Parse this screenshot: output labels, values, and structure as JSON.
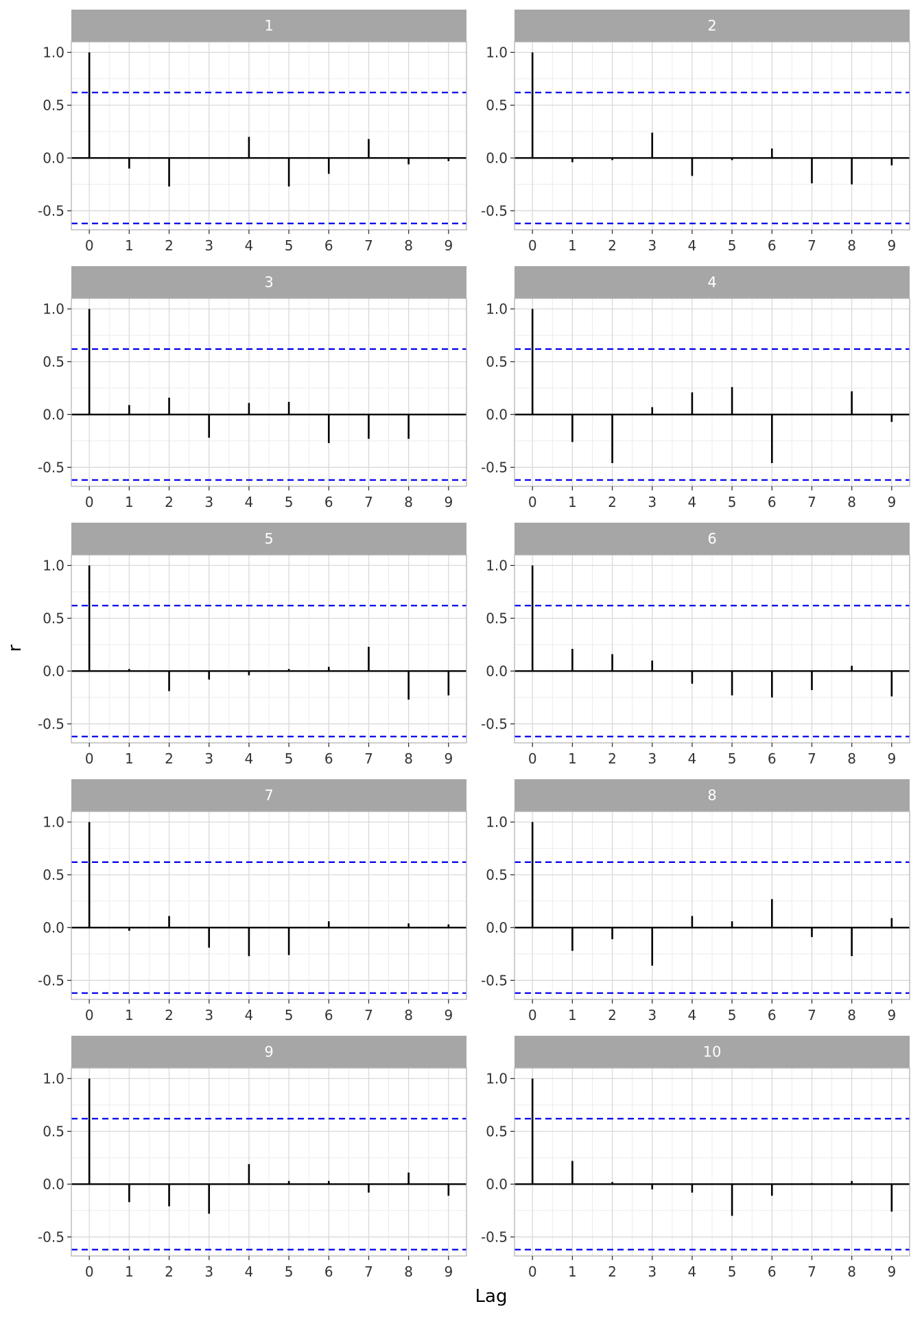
{
  "chart_data": {
    "type": "bar",
    "xlabel": "Lag",
    "ylabel": "r",
    "xlim": [
      -0.45,
      9.45
    ],
    "ylim": [
      -0.68,
      1.1
    ],
    "x_ticks": [
      0,
      1,
      2,
      3,
      4,
      5,
      6,
      7,
      8,
      9
    ],
    "y_ticks": [
      1.0,
      0.5,
      0.0,
      -0.5
    ],
    "y_tick_labels": [
      "1.0",
      "0.5",
      "0.0",
      "-0.5"
    ],
    "confidence_bound": 0.62,
    "confidence_line_color": "#0000ee",
    "grid": true,
    "strip_color": "#a6a6a6",
    "lags": [
      0,
      1,
      2,
      3,
      4,
      5,
      6,
      7,
      8,
      9
    ],
    "panels": [
      {
        "label": "1",
        "values": [
          1.0,
          -0.1,
          -0.27,
          0.0,
          0.2,
          -0.27,
          -0.15,
          0.18,
          -0.06,
          -0.03
        ]
      },
      {
        "label": "2",
        "values": [
          1.0,
          -0.04,
          -0.02,
          0.24,
          -0.17,
          -0.02,
          0.09,
          -0.24,
          -0.25,
          -0.07
        ]
      },
      {
        "label": "3",
        "values": [
          1.0,
          0.09,
          0.16,
          -0.22,
          0.11,
          0.12,
          -0.27,
          -0.23,
          -0.23,
          0.0
        ]
      },
      {
        "label": "4",
        "values": [
          1.0,
          -0.26,
          -0.46,
          0.07,
          0.21,
          0.26,
          -0.46,
          0.0,
          0.22,
          -0.07
        ]
      },
      {
        "label": "5",
        "values": [
          1.0,
          0.02,
          -0.19,
          -0.08,
          -0.04,
          0.02,
          0.04,
          0.23,
          -0.27,
          -0.23
        ]
      },
      {
        "label": "6",
        "values": [
          1.0,
          0.21,
          0.16,
          0.1,
          -0.12,
          -0.23,
          -0.25,
          -0.18,
          0.05,
          -0.24
        ]
      },
      {
        "label": "7",
        "values": [
          1.0,
          -0.03,
          0.11,
          -0.19,
          -0.27,
          -0.26,
          0.06,
          0.0,
          0.04,
          0.03
        ]
      },
      {
        "label": "8",
        "values": [
          1.0,
          -0.22,
          -0.11,
          -0.36,
          0.11,
          0.06,
          0.27,
          -0.09,
          -0.27,
          0.09
        ]
      },
      {
        "label": "9",
        "values": [
          1.0,
          -0.17,
          -0.21,
          -0.28,
          0.19,
          0.03,
          0.03,
          -0.08,
          0.11,
          -0.11
        ]
      },
      {
        "label": "10",
        "values": [
          1.0,
          0.22,
          0.02,
          -0.05,
          -0.08,
          -0.3,
          -0.11,
          0.01,
          0.03,
          -0.26
        ]
      }
    ]
  }
}
